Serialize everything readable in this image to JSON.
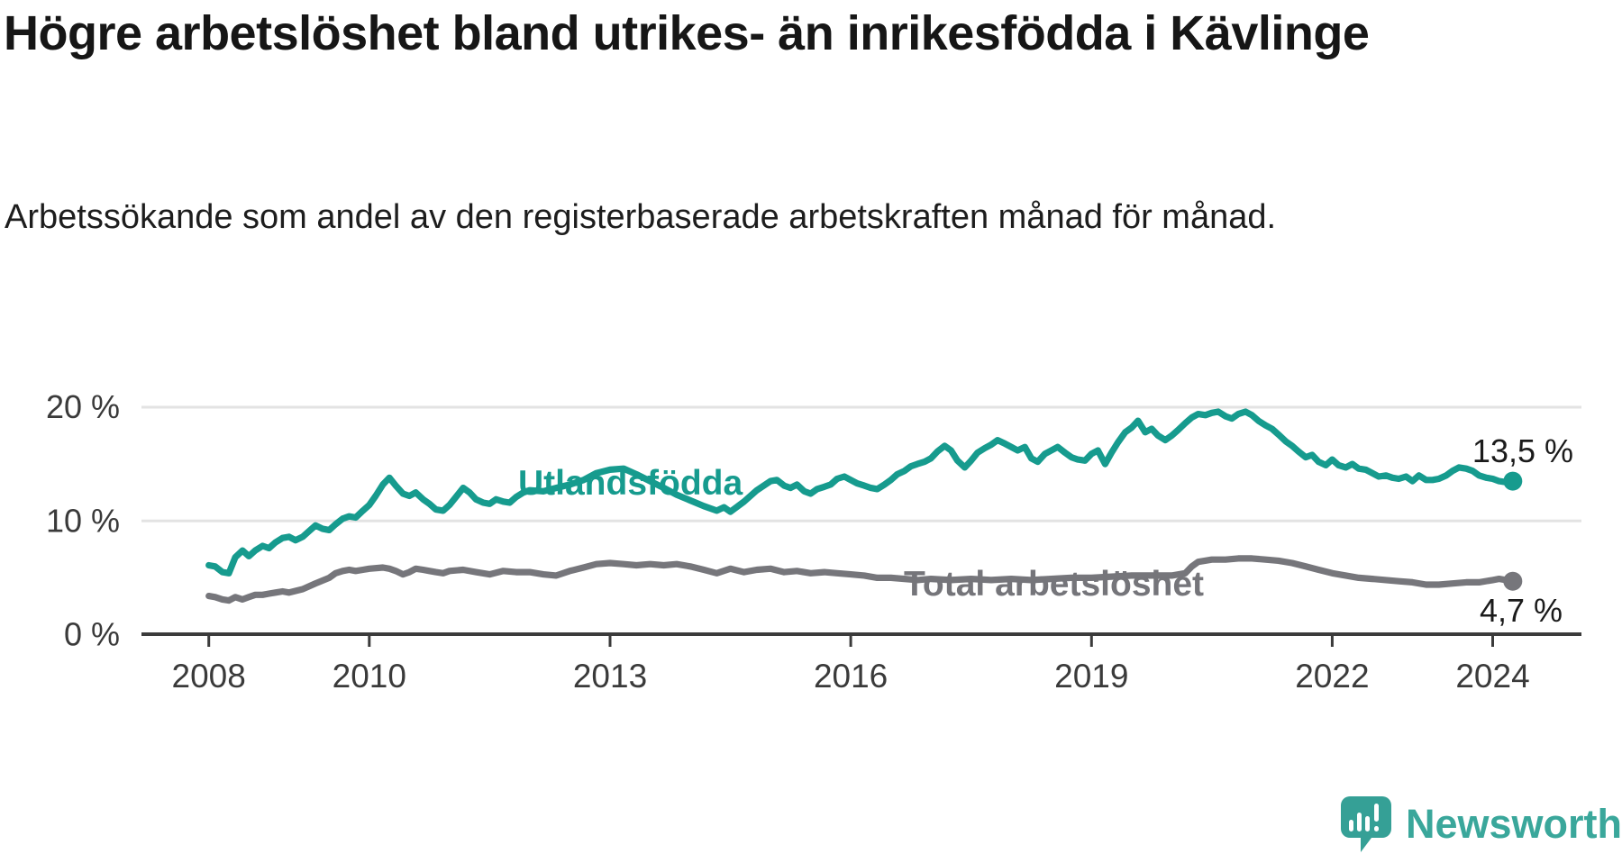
{
  "header": {
    "title": "Högre arbetslöshet bland utrikes- än inrikesfödda i Kävlinge",
    "subtitle": "Arbetssökande som andel av den registerbaserade arbetskraften månad för månad."
  },
  "branding": {
    "wordmark": "Newsworthy",
    "icon": "newsworthy-speech-bubble-chart-icon",
    "icon_color": "#35a096",
    "text_color": "#3aa79b"
  },
  "chart_data": {
    "type": "line",
    "title": "Högre arbetslöshet bland utrikes- än inrikesfödda i Kävlinge",
    "xlabel": "",
    "ylabel": "",
    "x_unit": "year (monthly data)",
    "y_unit": "percent",
    "x_ticks": [
      2008,
      2010,
      2013,
      2016,
      2019,
      2022,
      2024
    ],
    "x_tick_labels": [
      "2008",
      "2010",
      "2013",
      "2016",
      "2019",
      "2022",
      "2024"
    ],
    "y_ticks": [
      0,
      10,
      20
    ],
    "y_tick_labels": [
      "0 %",
      "10 %",
      "20 %"
    ],
    "y_grid": [
      10,
      20
    ],
    "xlim": [
      2007.2,
      2025.1
    ],
    "ylim": [
      0,
      22
    ],
    "grid": "horizontal",
    "legend_position": "inline-labels",
    "series": [
      {
        "name": "Utlandsfödda",
        "label_text": "Utlandsfödda",
        "color": "#169B8E",
        "end_label_text": "13,5 %",
        "end_value": 13.5,
        "points": [
          [
            2008.0,
            6.1
          ],
          [
            2008.08,
            6.0
          ],
          [
            2008.17,
            5.5
          ],
          [
            2008.25,
            5.4
          ],
          [
            2008.33,
            6.8
          ],
          [
            2008.42,
            7.4
          ],
          [
            2008.5,
            6.9
          ],
          [
            2008.58,
            7.4
          ],
          [
            2008.67,
            7.8
          ],
          [
            2008.75,
            7.6
          ],
          [
            2008.83,
            8.1
          ],
          [
            2008.92,
            8.5
          ],
          [
            2009.0,
            8.6
          ],
          [
            2009.08,
            8.3
          ],
          [
            2009.17,
            8.6
          ],
          [
            2009.25,
            9.1
          ],
          [
            2009.33,
            9.6
          ],
          [
            2009.42,
            9.3
          ],
          [
            2009.5,
            9.2
          ],
          [
            2009.58,
            9.7
          ],
          [
            2009.67,
            10.2
          ],
          [
            2009.75,
            10.4
          ],
          [
            2009.83,
            10.3
          ],
          [
            2009.92,
            10.9
          ],
          [
            2010.0,
            11.4
          ],
          [
            2010.08,
            12.2
          ],
          [
            2010.17,
            13.2
          ],
          [
            2010.25,
            13.8
          ],
          [
            2010.33,
            13.1
          ],
          [
            2010.42,
            12.4
          ],
          [
            2010.5,
            12.2
          ],
          [
            2010.58,
            12.5
          ],
          [
            2010.67,
            11.9
          ],
          [
            2010.75,
            11.5
          ],
          [
            2010.83,
            11.0
          ],
          [
            2010.92,
            10.9
          ],
          [
            2011.0,
            11.4
          ],
          [
            2011.08,
            12.1
          ],
          [
            2011.17,
            12.9
          ],
          [
            2011.25,
            12.5
          ],
          [
            2011.33,
            11.9
          ],
          [
            2011.42,
            11.6
          ],
          [
            2011.5,
            11.5
          ],
          [
            2011.58,
            11.9
          ],
          [
            2011.67,
            11.7
          ],
          [
            2011.75,
            11.6
          ],
          [
            2011.83,
            12.1
          ],
          [
            2011.92,
            12.5
          ],
          [
            2012.0,
            12.7
          ],
          [
            2012.17,
            12.6
          ],
          [
            2012.33,
            12.9
          ],
          [
            2012.5,
            13.2
          ],
          [
            2012.67,
            13.6
          ],
          [
            2012.83,
            14.2
          ],
          [
            2013.0,
            14.5
          ],
          [
            2013.17,
            14.6
          ],
          [
            2013.33,
            14.1
          ],
          [
            2013.5,
            13.5
          ],
          [
            2013.67,
            12.9
          ],
          [
            2013.83,
            12.3
          ],
          [
            2014.0,
            11.8
          ],
          [
            2014.17,
            11.3
          ],
          [
            2014.33,
            10.9
          ],
          [
            2014.42,
            11.2
          ],
          [
            2014.5,
            10.8
          ],
          [
            2014.67,
            11.7
          ],
          [
            2014.83,
            12.7
          ],
          [
            2015.0,
            13.5
          ],
          [
            2015.08,
            13.6
          ],
          [
            2015.17,
            13.1
          ],
          [
            2015.25,
            12.9
          ],
          [
            2015.33,
            13.2
          ],
          [
            2015.42,
            12.6
          ],
          [
            2015.5,
            12.4
          ],
          [
            2015.58,
            12.8
          ],
          [
            2015.67,
            13.0
          ],
          [
            2015.75,
            13.2
          ],
          [
            2015.83,
            13.7
          ],
          [
            2015.92,
            13.9
          ],
          [
            2016.0,
            13.6
          ],
          [
            2016.08,
            13.3
          ],
          [
            2016.17,
            13.1
          ],
          [
            2016.25,
            12.9
          ],
          [
            2016.33,
            12.8
          ],
          [
            2016.42,
            13.2
          ],
          [
            2016.5,
            13.6
          ],
          [
            2016.58,
            14.1
          ],
          [
            2016.67,
            14.4
          ],
          [
            2016.75,
            14.8
          ],
          [
            2016.83,
            15.0
          ],
          [
            2016.92,
            15.2
          ],
          [
            2017.0,
            15.5
          ],
          [
            2017.08,
            16.1
          ],
          [
            2017.17,
            16.6
          ],
          [
            2017.25,
            16.2
          ],
          [
            2017.33,
            15.3
          ],
          [
            2017.42,
            14.7
          ],
          [
            2017.5,
            15.3
          ],
          [
            2017.58,
            16.0
          ],
          [
            2017.67,
            16.4
          ],
          [
            2017.75,
            16.7
          ],
          [
            2017.83,
            17.1
          ],
          [
            2017.92,
            16.8
          ],
          [
            2018.0,
            16.5
          ],
          [
            2018.08,
            16.2
          ],
          [
            2018.17,
            16.5
          ],
          [
            2018.25,
            15.5
          ],
          [
            2018.33,
            15.2
          ],
          [
            2018.42,
            15.9
          ],
          [
            2018.5,
            16.2
          ],
          [
            2018.58,
            16.5
          ],
          [
            2018.67,
            16.0
          ],
          [
            2018.75,
            15.6
          ],
          [
            2018.83,
            15.4
          ],
          [
            2018.92,
            15.3
          ],
          [
            2019.0,
            15.9
          ],
          [
            2019.08,
            16.2
          ],
          [
            2019.17,
            15.0
          ],
          [
            2019.25,
            16.0
          ],
          [
            2019.33,
            16.9
          ],
          [
            2019.42,
            17.8
          ],
          [
            2019.5,
            18.2
          ],
          [
            2019.58,
            18.8
          ],
          [
            2019.67,
            17.8
          ],
          [
            2019.75,
            18.1
          ],
          [
            2019.83,
            17.5
          ],
          [
            2019.92,
            17.1
          ],
          [
            2020.0,
            17.5
          ],
          [
            2020.08,
            18.0
          ],
          [
            2020.17,
            18.6
          ],
          [
            2020.25,
            19.1
          ],
          [
            2020.33,
            19.4
          ],
          [
            2020.42,
            19.3
          ],
          [
            2020.5,
            19.5
          ],
          [
            2020.58,
            19.6
          ],
          [
            2020.67,
            19.2
          ],
          [
            2020.75,
            19.0
          ],
          [
            2020.83,
            19.4
          ],
          [
            2020.92,
            19.6
          ],
          [
            2021.0,
            19.3
          ],
          [
            2021.08,
            18.8
          ],
          [
            2021.17,
            18.4
          ],
          [
            2021.25,
            18.1
          ],
          [
            2021.33,
            17.6
          ],
          [
            2021.42,
            17.0
          ],
          [
            2021.5,
            16.6
          ],
          [
            2021.58,
            16.1
          ],
          [
            2021.67,
            15.6
          ],
          [
            2021.75,
            15.8
          ],
          [
            2021.83,
            15.2
          ],
          [
            2021.92,
            14.9
          ],
          [
            2022.0,
            15.4
          ],
          [
            2022.08,
            14.9
          ],
          [
            2022.17,
            14.7
          ],
          [
            2022.25,
            15.0
          ],
          [
            2022.33,
            14.6
          ],
          [
            2022.42,
            14.5
          ],
          [
            2022.5,
            14.2
          ],
          [
            2022.58,
            13.9
          ],
          [
            2022.67,
            14.0
          ],
          [
            2022.75,
            13.8
          ],
          [
            2022.83,
            13.7
          ],
          [
            2022.92,
            13.9
          ],
          [
            2023.0,
            13.5
          ],
          [
            2023.08,
            14.0
          ],
          [
            2023.17,
            13.6
          ],
          [
            2023.25,
            13.6
          ],
          [
            2023.33,
            13.7
          ],
          [
            2023.42,
            14.0
          ],
          [
            2023.5,
            14.4
          ],
          [
            2023.58,
            14.7
          ],
          [
            2023.67,
            14.6
          ],
          [
            2023.75,
            14.4
          ],
          [
            2023.83,
            14.0
          ],
          [
            2023.92,
            13.8
          ],
          [
            2024.0,
            13.7
          ],
          [
            2024.08,
            13.5
          ],
          [
            2024.17,
            13.4
          ],
          [
            2024.25,
            13.5
          ]
        ]
      },
      {
        "name": "Total arbetslöshet",
        "label_text": "Total arbetslöshet",
        "color": "#76767B",
        "end_label_text": "4,7 %",
        "end_value": 4.7,
        "points": [
          [
            2008.0,
            3.4
          ],
          [
            2008.08,
            3.3
          ],
          [
            2008.17,
            3.1
          ],
          [
            2008.25,
            3.0
          ],
          [
            2008.33,
            3.3
          ],
          [
            2008.42,
            3.1
          ],
          [
            2008.5,
            3.3
          ],
          [
            2008.58,
            3.5
          ],
          [
            2008.67,
            3.5
          ],
          [
            2008.75,
            3.6
          ],
          [
            2008.83,
            3.7
          ],
          [
            2008.92,
            3.8
          ],
          [
            2009.0,
            3.7
          ],
          [
            2009.17,
            4.0
          ],
          [
            2009.33,
            4.5
          ],
          [
            2009.5,
            5.0
          ],
          [
            2009.58,
            5.4
          ],
          [
            2009.67,
            5.6
          ],
          [
            2009.75,
            5.7
          ],
          [
            2009.83,
            5.6
          ],
          [
            2009.92,
            5.7
          ],
          [
            2010.0,
            5.8
          ],
          [
            2010.17,
            5.9
          ],
          [
            2010.25,
            5.8
          ],
          [
            2010.33,
            5.6
          ],
          [
            2010.42,
            5.3
          ],
          [
            2010.5,
            5.5
          ],
          [
            2010.58,
            5.8
          ],
          [
            2010.67,
            5.7
          ],
          [
            2010.75,
            5.6
          ],
          [
            2010.83,
            5.5
          ],
          [
            2010.92,
            5.4
          ],
          [
            2011.0,
            5.6
          ],
          [
            2011.17,
            5.7
          ],
          [
            2011.33,
            5.5
          ],
          [
            2011.5,
            5.3
          ],
          [
            2011.67,
            5.6
          ],
          [
            2011.83,
            5.5
          ],
          [
            2012.0,
            5.5
          ],
          [
            2012.17,
            5.3
          ],
          [
            2012.33,
            5.2
          ],
          [
            2012.5,
            5.6
          ],
          [
            2012.67,
            5.9
          ],
          [
            2012.83,
            6.2
          ],
          [
            2013.0,
            6.3
          ],
          [
            2013.17,
            6.2
          ],
          [
            2013.33,
            6.1
          ],
          [
            2013.5,
            6.2
          ],
          [
            2013.67,
            6.1
          ],
          [
            2013.83,
            6.2
          ],
          [
            2014.0,
            6.0
          ],
          [
            2014.17,
            5.7
          ],
          [
            2014.33,
            5.4
          ],
          [
            2014.5,
            5.8
          ],
          [
            2014.67,
            5.5
          ],
          [
            2014.83,
            5.7
          ],
          [
            2015.0,
            5.8
          ],
          [
            2015.17,
            5.5
          ],
          [
            2015.33,
            5.6
          ],
          [
            2015.5,
            5.4
          ],
          [
            2015.67,
            5.5
          ],
          [
            2015.83,
            5.4
          ],
          [
            2016.0,
            5.3
          ],
          [
            2016.17,
            5.2
          ],
          [
            2016.33,
            5.0
          ],
          [
            2016.5,
            5.0
          ],
          [
            2016.67,
            4.9
          ],
          [
            2016.83,
            4.8
          ],
          [
            2017.0,
            4.9
          ],
          [
            2017.25,
            4.8
          ],
          [
            2017.5,
            4.9
          ],
          [
            2017.75,
            4.8
          ],
          [
            2018.0,
            4.9
          ],
          [
            2018.25,
            4.8
          ],
          [
            2018.5,
            4.9
          ],
          [
            2018.75,
            5.0
          ],
          [
            2019.0,
            5.0
          ],
          [
            2019.25,
            5.1
          ],
          [
            2019.5,
            5.2
          ],
          [
            2019.75,
            5.2
          ],
          [
            2020.0,
            5.2
          ],
          [
            2020.17,
            5.4
          ],
          [
            2020.25,
            6.0
          ],
          [
            2020.33,
            6.4
          ],
          [
            2020.5,
            6.6
          ],
          [
            2020.67,
            6.6
          ],
          [
            2020.83,
            6.7
          ],
          [
            2021.0,
            6.7
          ],
          [
            2021.17,
            6.6
          ],
          [
            2021.33,
            6.5
          ],
          [
            2021.5,
            6.3
          ],
          [
            2021.67,
            6.0
          ],
          [
            2021.83,
            5.7
          ],
          [
            2022.0,
            5.4
          ],
          [
            2022.17,
            5.2
          ],
          [
            2022.33,
            5.0
          ],
          [
            2022.5,
            4.9
          ],
          [
            2022.67,
            4.8
          ],
          [
            2022.83,
            4.7
          ],
          [
            2023.0,
            4.6
          ],
          [
            2023.17,
            4.4
          ],
          [
            2023.33,
            4.4
          ],
          [
            2023.5,
            4.5
          ],
          [
            2023.67,
            4.6
          ],
          [
            2023.83,
            4.6
          ],
          [
            2024.0,
            4.8
          ],
          [
            2024.08,
            4.9
          ],
          [
            2024.17,
            4.8
          ],
          [
            2024.25,
            4.7
          ]
        ]
      }
    ]
  }
}
